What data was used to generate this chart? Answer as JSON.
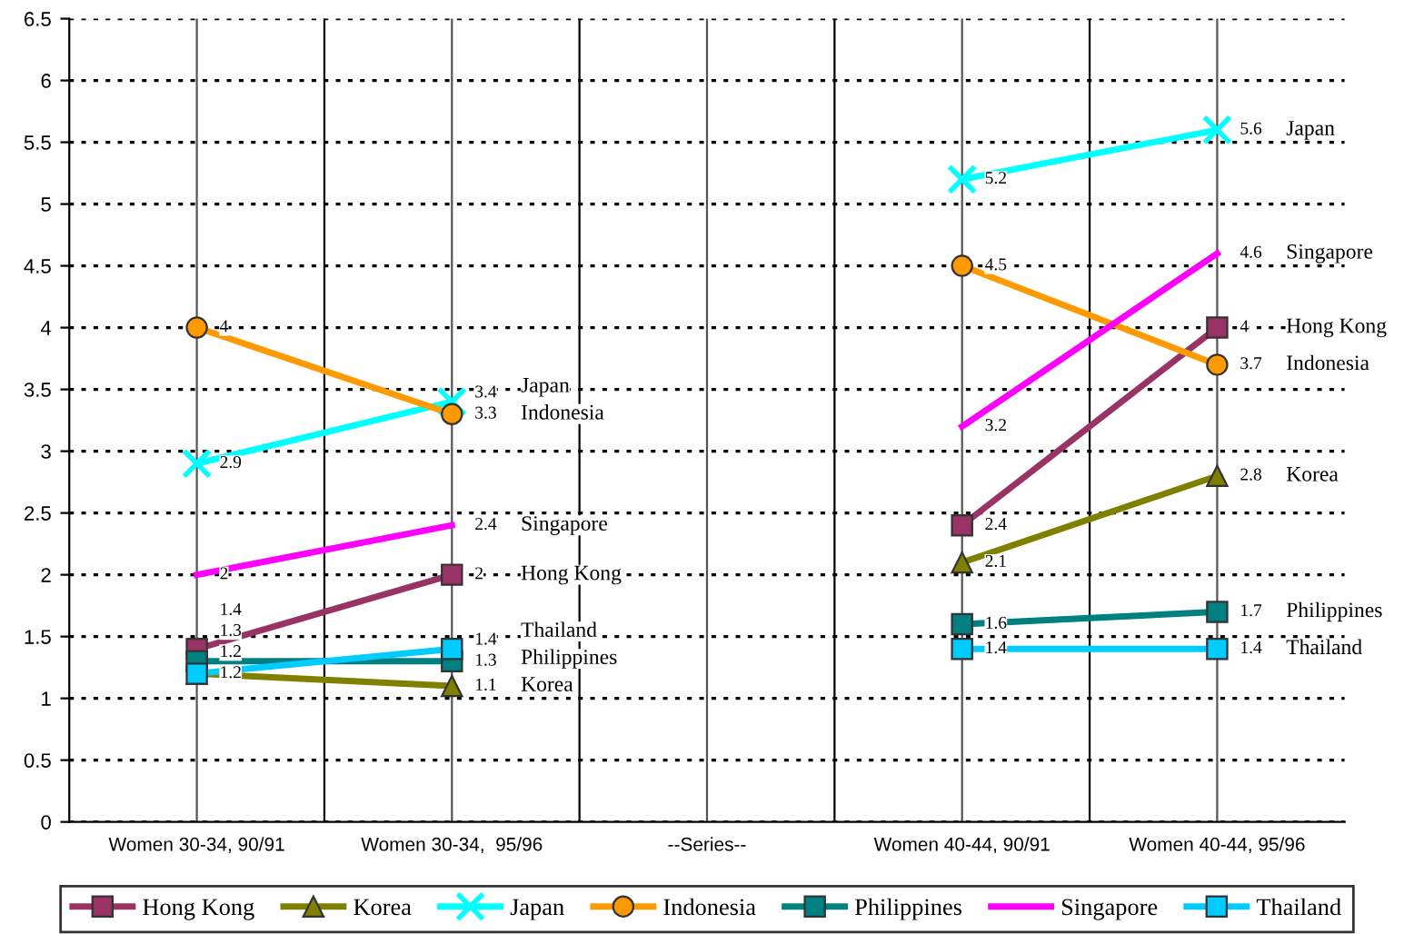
{
  "chart_data": {
    "type": "line",
    "categories": [
      "Women 30-34, 90/91",
      "Women 30-34,  95/96",
      "--Series--",
      "Women 40-44, 90/91",
      "Women 40-44, 95/96"
    ],
    "series": [
      {
        "name": "Hong Kong",
        "color": "#993366",
        "marker": "square",
        "values": [
          1.4,
          2,
          null,
          2.4,
          4
        ]
      },
      {
        "name": "Korea",
        "color": "#808000",
        "marker": "triangle",
        "values": [
          1.2,
          1.1,
          null,
          2.1,
          2.8
        ]
      },
      {
        "name": "Japan",
        "color": "#00ffff",
        "marker": "cross",
        "values": [
          2.9,
          3.4,
          null,
          5.2,
          5.6
        ]
      },
      {
        "name": "Indonesia",
        "color": "#ff9900",
        "marker": "circle",
        "values": [
          4,
          3.3,
          null,
          4.5,
          3.7
        ]
      },
      {
        "name": "Philippines",
        "color": "#008080",
        "marker": "square",
        "values": [
          1.3,
          1.3,
          null,
          1.6,
          1.7
        ]
      },
      {
        "name": "Singapore",
        "color": "#ff00ff",
        "marker": "none",
        "values": [
          2,
          2.4,
          null,
          3.2,
          4.6
        ]
      },
      {
        "name": "Thailand",
        "color": "#00ccff",
        "marker": "square",
        "values": [
          1.2,
          1.4,
          null,
          1.4,
          1.4
        ]
      }
    ],
    "ylim": [
      0,
      6.5
    ],
    "yticks": [
      0,
      0.5,
      1,
      1.5,
      2,
      2.5,
      3,
      3.5,
      4,
      4.5,
      5,
      5.5,
      6,
      6.5
    ],
    "grid": true,
    "legend": "bottom",
    "data_labels": true,
    "line_style": "solid"
  }
}
